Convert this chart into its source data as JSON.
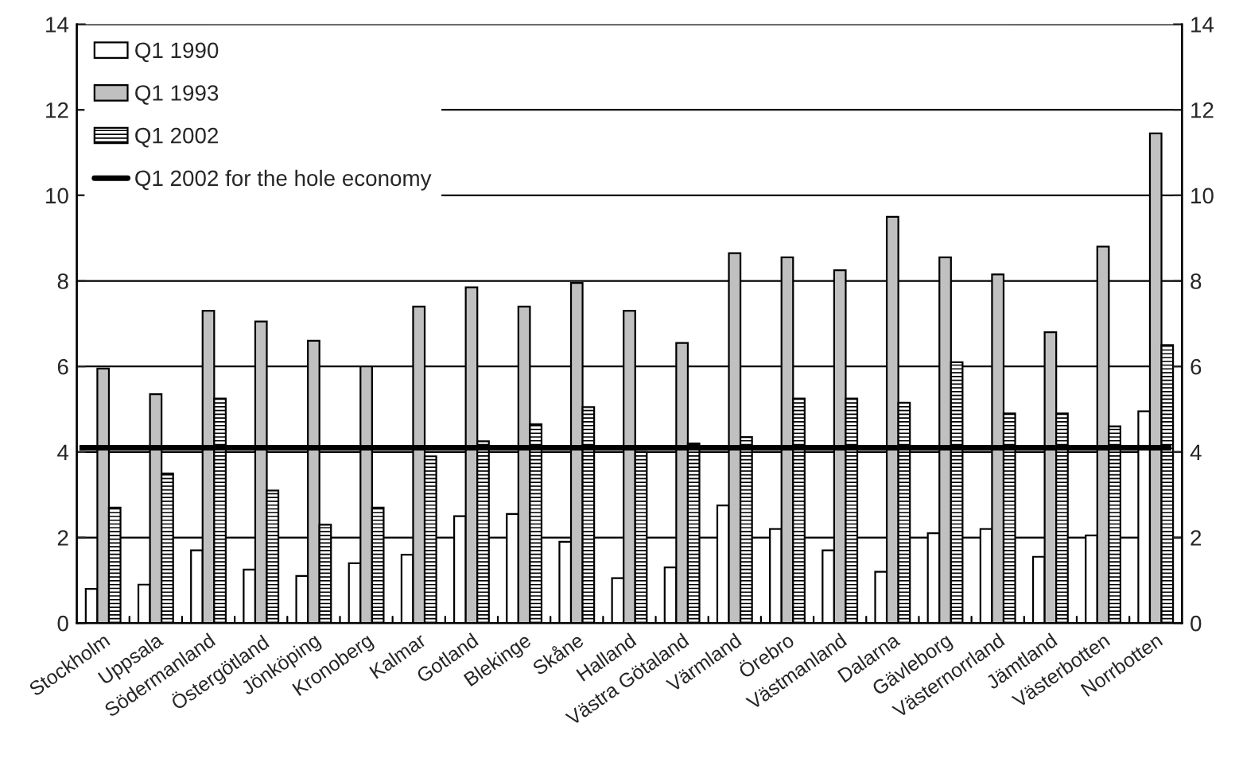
{
  "chart_data": {
    "type": "bar",
    "categories": [
      "Stockholm",
      "Uppsala",
      "Södermanland",
      "Östergötland",
      "Jönköping",
      "Kronoberg",
      "Kalmar",
      "Gotland",
      "Blekinge",
      "Skåne",
      "Halland",
      "Västra Götaland",
      "Värmland",
      "Örebro",
      "Västmanland",
      "Dalarna",
      "Gävleborg",
      "Västernorrland",
      "Jämtland",
      "Västerbotten",
      "Norrbotten"
    ],
    "series": [
      {
        "name": "Q1 1990",
        "color": "#ffffff",
        "values": [
          0.8,
          0.9,
          1.7,
          1.25,
          1.1,
          1.4,
          1.6,
          2.5,
          2.55,
          1.9,
          1.05,
          1.3,
          2.75,
          2.2,
          1.7,
          1.2,
          2.1,
          2.2,
          1.55,
          2.05,
          4.95
        ]
      },
      {
        "name": "Q1 1993",
        "color": "#c0c0c0",
        "values": [
          5.95,
          5.35,
          7.3,
          7.05,
          6.6,
          6.0,
          7.4,
          7.85,
          7.4,
          7.95,
          7.3,
          6.55,
          8.65,
          8.55,
          8.25,
          9.5,
          8.55,
          8.15,
          6.8,
          8.8,
          11.45
        ]
      },
      {
        "name": "Q1 2002",
        "color": "#000000",
        "values": [
          2.7,
          3.5,
          5.25,
          3.1,
          2.3,
          2.7,
          3.9,
          4.25,
          4.65,
          5.05,
          4.0,
          4.2,
          4.35,
          5.25,
          5.25,
          5.15,
          6.1,
          4.9,
          4.9,
          4.6,
          6.5
        ]
      }
    ],
    "ref_lines": [
      {
        "axis": "y",
        "value": 4.1,
        "label": "Q1 2002 for the hole economy",
        "color": "#000000"
      }
    ],
    "ylim": [
      0,
      14
    ],
    "yticks": [
      0,
      2,
      4,
      6,
      8,
      10,
      12,
      14
    ],
    "y2lim": [
      0,
      14
    ],
    "y2ticks": [
      0,
      2,
      4,
      6,
      8,
      10,
      12,
      14
    ],
    "grid": "y",
    "legend": "top left"
  }
}
